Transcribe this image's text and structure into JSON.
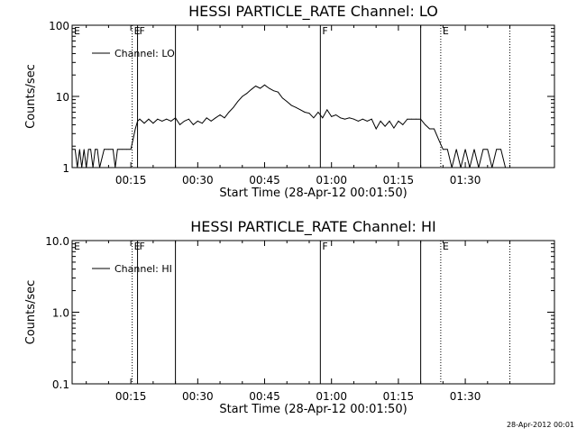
{
  "timestamp": "28-Apr-2012 00:01",
  "chart_data": [
    {
      "type": "line",
      "title": "HESSI PARTICLE_RATE Channel: LO",
      "xlabel": "Start Time (28-Apr-12 00:01:50)",
      "ylabel": "Counts/sec",
      "y_scale": "log",
      "xlim_minutes": [
        1.83,
        110
      ],
      "ylim": [
        1,
        100
      ],
      "x_ticks": [
        {
          "minute": 15,
          "label": "00:15"
        },
        {
          "minute": 30,
          "label": "00:30"
        },
        {
          "minute": 45,
          "label": "00:45"
        },
        {
          "minute": 60,
          "label": "01:00"
        },
        {
          "minute": 75,
          "label": "01:15"
        },
        {
          "minute": 90,
          "label": "01:30"
        }
      ],
      "y_ticks": [
        {
          "value": 1,
          "label": "1"
        },
        {
          "value": 10,
          "label": "10"
        },
        {
          "value": 100,
          "label": "100"
        }
      ],
      "legend": {
        "placement": "top-left",
        "entries": [
          "Channel: LO"
        ]
      },
      "flags": [
        {
          "minute": 15.3,
          "style": "dotted",
          "label": "E"
        },
        {
          "minute": 16.5,
          "style": "solid",
          "label": "F"
        },
        {
          "minute": 25.0,
          "style": "solid",
          "label": ""
        },
        {
          "minute": 57.5,
          "style": "solid",
          "label": "F"
        },
        {
          "minute": 80.0,
          "style": "solid",
          "label": ""
        },
        {
          "minute": 84.5,
          "style": "dotted",
          "label": "E"
        },
        {
          "minute": 100.0,
          "style": "dotted",
          "label": ""
        }
      ],
      "series": [
        {
          "name": "Channel: LO",
          "x": [
            1.83,
            2.5,
            3.0,
            3.5,
            4.0,
            4.5,
            5.0,
            5.5,
            6.0,
            6.5,
            7.0,
            7.5,
            8.0,
            9.0,
            10.0,
            11.0,
            11.5,
            12.0,
            12.5,
            13.0,
            14.0,
            15.0,
            15.5,
            16.0,
            16.5,
            17.0,
            18.0,
            19.0,
            20.0,
            21.0,
            22.0,
            23.0,
            24.0,
            25.0,
            26.0,
            27.0,
            28.0,
            29.0,
            30.0,
            31.0,
            32.0,
            33.0,
            34.0,
            35.0,
            36.0,
            37.0,
            38.0,
            39.0,
            40.0,
            41.0,
            42.0,
            43.0,
            44.0,
            45.0,
            46.0,
            47.0,
            48.0,
            49.0,
            50.0,
            51.0,
            52.0,
            53.0,
            54.0,
            55.0,
            56.0,
            57.0,
            58.0,
            59.0,
            60.0,
            61.0,
            62.0,
            63.0,
            64.0,
            65.0,
            66.0,
            67.0,
            68.0,
            69.0,
            70.0,
            71.0,
            72.0,
            73.0,
            74.0,
            75.0,
            76.0,
            77.0,
            78.0,
            79.0,
            80.0,
            81.0,
            82.0,
            83.0,
            84.0,
            85.0,
            86.0,
            87.0,
            88.0,
            89.0,
            90.0,
            91.0,
            92.0,
            93.0,
            94.0,
            95.0,
            96.0,
            97.0,
            98.0,
            99.0
          ],
          "values": [
            1.8,
            1.8,
            1.0,
            1.8,
            1.0,
            1.8,
            1.0,
            1.8,
            1.8,
            1.0,
            1.8,
            1.8,
            1.0,
            1.8,
            1.8,
            1.8,
            1.0,
            1.8,
            1.8,
            1.8,
            1.8,
            1.8,
            2.5,
            3.5,
            4.5,
            4.8,
            4.2,
            4.8,
            4.2,
            4.8,
            4.5,
            4.8,
            4.5,
            5.0,
            4.0,
            4.5,
            4.8,
            4.0,
            4.5,
            4.2,
            5.0,
            4.5,
            5.0,
            5.5,
            5.0,
            6.0,
            7.0,
            8.5,
            10.0,
            11.0,
            12.5,
            14.0,
            13.0,
            14.5,
            13.0,
            12.0,
            11.5,
            9.5,
            8.5,
            7.5,
            7.0,
            6.5,
            6.0,
            5.8,
            5.0,
            6.0,
            5.0,
            6.5,
            5.2,
            5.5,
            5.0,
            4.8,
            5.0,
            4.8,
            4.5,
            4.8,
            4.5,
            4.8,
            3.5,
            4.5,
            3.8,
            4.5,
            3.6,
            4.5,
            4.0,
            4.8,
            4.8,
            4.8,
            4.8,
            4.0,
            3.5,
            3.5,
            2.5,
            1.8,
            1.8,
            1.0,
            1.8,
            1.0,
            1.8,
            1.0,
            1.8,
            1.0,
            1.8,
            1.8,
            1.0,
            1.8,
            1.8,
            1.0
          ]
        }
      ]
    },
    {
      "type": "line",
      "title": "HESSI PARTICLE_RATE Channel: HI",
      "xlabel": "Start Time (28-Apr-12 00:01:50)",
      "ylabel": "Counts/sec",
      "y_scale": "log",
      "xlim_minutes": [
        1.83,
        110
      ],
      "ylim": [
        0.1,
        10
      ],
      "x_ticks": [
        {
          "minute": 15,
          "label": "00:15"
        },
        {
          "minute": 30,
          "label": "00:30"
        },
        {
          "minute": 45,
          "label": "00:45"
        },
        {
          "minute": 60,
          "label": "01:00"
        },
        {
          "minute": 75,
          "label": "01:15"
        },
        {
          "minute": 90,
          "label": "01:30"
        }
      ],
      "y_ticks": [
        {
          "value": 0.1,
          "label": "0.1"
        },
        {
          "value": 1,
          "label": "1.0"
        },
        {
          "value": 10,
          "label": "10.0"
        }
      ],
      "legend": {
        "placement": "top-left",
        "entries": [
          "Channel: HI"
        ]
      },
      "flags": [
        {
          "minute": 15.3,
          "style": "dotted",
          "label": "E"
        },
        {
          "minute": 16.5,
          "style": "solid",
          "label": "F"
        },
        {
          "minute": 25.0,
          "style": "solid",
          "label": ""
        },
        {
          "minute": 57.5,
          "style": "solid",
          "label": "F"
        },
        {
          "minute": 80.0,
          "style": "solid",
          "label": ""
        },
        {
          "minute": 84.5,
          "style": "dotted",
          "label": "E"
        },
        {
          "minute": 100.0,
          "style": "dotted",
          "label": ""
        }
      ],
      "series": [
        {
          "name": "Channel: HI",
          "x": [],
          "values": []
        }
      ]
    }
  ]
}
